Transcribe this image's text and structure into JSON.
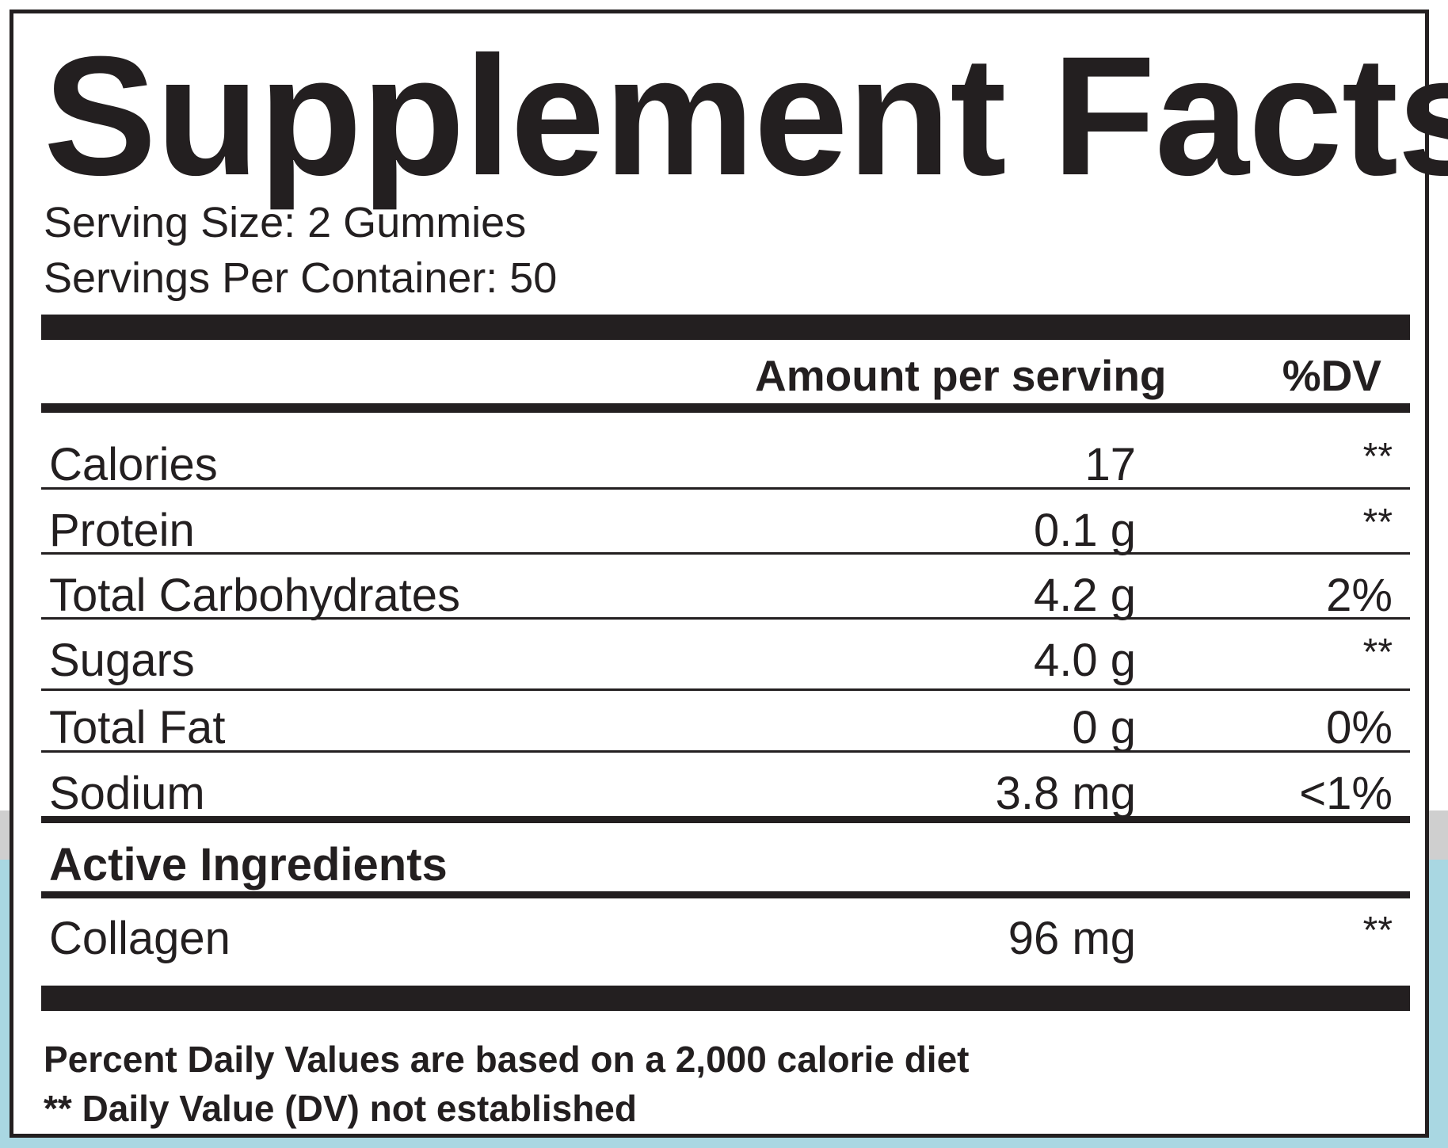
{
  "title": "Supplement Facts",
  "serving_size": "Serving Size: 2 Gummies",
  "servings_per_container": "Servings Per Container: 50",
  "header": {
    "amount": "Amount per serving",
    "dv": "%DV"
  },
  "nutrients": [
    {
      "name": "Calories",
      "amount": "17",
      "dv": "**"
    },
    {
      "name": "Protein",
      "amount": "0.1 g",
      "dv": "**"
    },
    {
      "name": "Total Carbohydrates",
      "amount": "4.2 g",
      "dv": "2%"
    },
    {
      "name": "Sugars",
      "amount": "4.0 g",
      "dv": "**"
    },
    {
      "name": "Total Fat",
      "amount": "0 g",
      "dv": "0%"
    },
    {
      "name": "Sodium",
      "amount": "3.8 mg",
      "dv": "<1%"
    }
  ],
  "active_heading": "Active Ingredients",
  "active": [
    {
      "name": "Collagen",
      "amount": "96 mg",
      "dv": "**"
    }
  ],
  "footnotes": {
    "line1": "Percent Daily Values are based on a 2,000 calorie diet",
    "line2": "** Daily Value (DV) not established"
  }
}
